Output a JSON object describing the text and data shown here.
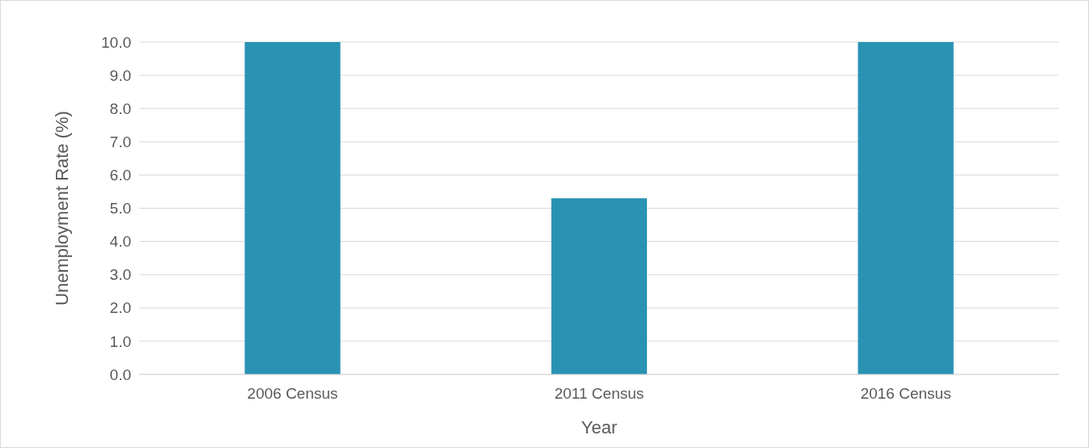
{
  "chart_data": {
    "type": "bar",
    "xlabel": "Year",
    "ylabel": "Unemployment Rate (%)",
    "categories": [
      "2006 Census",
      "2011 Census",
      "2016 Census"
    ],
    "values": [
      10,
      5.3,
      10
    ],
    "color": "#2a93b3",
    "ylim": [
      0,
      10
    ],
    "yticks": [
      {
        "value": 0,
        "label": "0.0"
      },
      {
        "value": 1,
        "label": "1.0"
      },
      {
        "value": 2,
        "label": "2.0"
      },
      {
        "value": 3,
        "label": "3.0"
      },
      {
        "value": 4,
        "label": "4.0"
      },
      {
        "value": 5,
        "label": "5.0"
      },
      {
        "value": 6,
        "label": "6.0"
      },
      {
        "value": 7,
        "label": "7.0"
      },
      {
        "value": 8,
        "label": "8.0"
      },
      {
        "value": 9,
        "label": "9.0"
      },
      {
        "value": 10,
        "label": "10.0"
      }
    ],
    "grid": "y"
  }
}
